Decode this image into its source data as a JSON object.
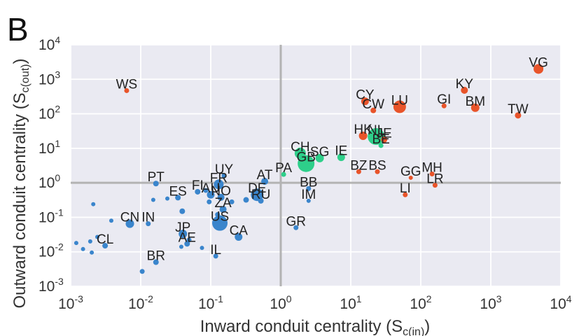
{
  "panel_label": "B",
  "chart_data": {
    "type": "scatter",
    "xlabel": "Inward conduit centrality (S_c(in))",
    "ylabel": "Outward conduit centrality (S_c(out))",
    "xlabel_main": "Inward conduit centrality (S",
    "xlabel_sub": "c(in)",
    "xlabel_end": ")",
    "ylabel_main": "Outward conduit centrality (S",
    "ylabel_sub": "c(out)",
    "ylabel_end": ")",
    "xscale": "log",
    "yscale": "log",
    "xlim": [
      0.001,
      10000
    ],
    "ylim": [
      0.001,
      10000
    ],
    "grid": true,
    "reference_lines": {
      "x": 1,
      "y": 1
    },
    "x_ticks": [
      {
        "base": "10",
        "exp": "-3",
        "value": 0.001
      },
      {
        "base": "10",
        "exp": "-2",
        "value": 0.01
      },
      {
        "base": "10",
        "exp": "-1",
        "value": 0.1
      },
      {
        "base": "10",
        "exp": "0",
        "value": 1
      },
      {
        "base": "10",
        "exp": "1",
        "value": 10
      },
      {
        "base": "10",
        "exp": "2",
        "value": 100
      },
      {
        "base": "10",
        "exp": "3",
        "value": 1000
      },
      {
        "base": "10",
        "exp": "4",
        "value": 10000
      }
    ],
    "y_ticks": [
      {
        "base": "10",
        "exp": "-3",
        "value": 0.001
      },
      {
        "base": "10",
        "exp": "-2",
        "value": 0.01
      },
      {
        "base": "10",
        "exp": "-1",
        "value": 0.1
      },
      {
        "base": "10",
        "exp": "0",
        "value": 1
      },
      {
        "base": "10",
        "exp": "1",
        "value": 10
      },
      {
        "base": "10",
        "exp": "2",
        "value": 100
      },
      {
        "base": "10",
        "exp": "3",
        "value": 1000
      },
      {
        "base": "10",
        "exp": "4",
        "value": 10000
      }
    ],
    "colors": {
      "sink": "#e8542a",
      "conduit": "#2ecf8a",
      "other": "#3a85cc"
    },
    "points": [
      {
        "label": "VG",
        "x": 4800,
        "y": 2000,
        "size": 7,
        "group": "sink"
      },
      {
        "label": "WS",
        "x": 0.0063,
        "y": 470,
        "size": 3.5,
        "group": "sink"
      },
      {
        "label": "KY",
        "x": 420,
        "y": 480,
        "size": 5,
        "group": "sink"
      },
      {
        "label": "CY",
        "x": 16,
        "y": 230,
        "size": 5.5,
        "group": "sink"
      },
      {
        "label": "LU",
        "x": 50,
        "y": 160,
        "size": 9,
        "group": "sink"
      },
      {
        "label": "GI",
        "x": 215,
        "y": 170,
        "size": 3.5,
        "group": "sink"
      },
      {
        "label": "BM",
        "x": 600,
        "y": 150,
        "size": 6,
        "group": "sink"
      },
      {
        "label": "TW",
        "x": 2450,
        "y": 90,
        "size": 4.5,
        "group": "sink"
      },
      {
        "label": "CW",
        "x": 21,
        "y": 125,
        "size": 4,
        "group": "sink"
      },
      {
        "label": "HK",
        "x": 15,
        "y": 23,
        "size": 6,
        "group": "sink"
      },
      {
        "label": "NL",
        "x": 23,
        "y": 22,
        "size": 12,
        "group": "conduit"
      },
      {
        "label": "JE",
        "x": 30,
        "y": 18,
        "size": 4.5,
        "group": "sink"
      },
      {
        "label": "BE",
        "x": 27,
        "y": 12,
        "size": 3.5,
        "group": "conduit"
      },
      {
        "label": "CH",
        "x": 1.9,
        "y": 7.2,
        "size": 8,
        "group": "conduit"
      },
      {
        "label": "SG",
        "x": 3.6,
        "y": 5.2,
        "size": 6,
        "group": "conduit"
      },
      {
        "label": "IE",
        "x": 7.3,
        "y": 5.5,
        "size": 5.5,
        "group": "conduit"
      },
      {
        "label": "GB",
        "x": 2.3,
        "y": 3.6,
        "size": 12,
        "group": "conduit"
      },
      {
        "label": "PA",
        "x": 1.1,
        "y": 1.75,
        "size": 3.5,
        "group": "conduit"
      },
      {
        "label": "BZ",
        "x": 13,
        "y": 2.1,
        "size": 3.5,
        "group": "sink"
      },
      {
        "label": "BS",
        "x": 24,
        "y": 2.1,
        "size": 3.5,
        "group": "sink"
      },
      {
        "label": "GG",
        "x": 72,
        "y": 1.4,
        "size": 3,
        "group": "sink"
      },
      {
        "label": "MH",
        "x": 145,
        "y": 1.8,
        "size": 3.5,
        "group": "sink"
      },
      {
        "label": "LR",
        "x": 160,
        "y": 0.85,
        "size": 3.5,
        "group": "sink"
      },
      {
        "label": "LI",
        "x": 60,
        "y": 0.45,
        "size": 3.5,
        "group": "sink"
      },
      {
        "label": "UY",
        "x": 0.155,
        "y": 1.6,
        "size": 3.5,
        "group": "other"
      },
      {
        "label": "AT",
        "x": 0.59,
        "y": 1.1,
        "size": 5,
        "group": "other"
      },
      {
        "label": "PT",
        "x": 0.0165,
        "y": 0.95,
        "size": 4,
        "group": "other"
      },
      {
        "label": "FR",
        "x": 0.13,
        "y": 0.9,
        "size": 7,
        "group": "other"
      },
      {
        "label": "FI",
        "x": 0.065,
        "y": 0.55,
        "size": 4,
        "group": "other"
      },
      {
        "label": "BB",
        "x": 2.5,
        "y": 0.68,
        "size": 3.5,
        "group": "other"
      },
      {
        "label": "DE",
        "x": 0.46,
        "y": 0.45,
        "size": 9,
        "group": "other"
      },
      {
        "label": "ES",
        "x": 0.034,
        "y": 0.37,
        "size": 4,
        "group": "other"
      },
      {
        "label": "NO",
        "x": 0.14,
        "y": 0.38,
        "size": 5,
        "group": "other"
      },
      {
        "label": "AU",
        "x": 0.1,
        "y": 0.45,
        "size": 5.5,
        "group": "other"
      },
      {
        "label": "IM",
        "x": 2.5,
        "y": 0.3,
        "size": 3,
        "group": "other"
      },
      {
        "label": "RU",
        "x": 0.52,
        "y": 0.3,
        "size": 4,
        "group": "other"
      },
      {
        "label": "ZA",
        "x": 0.15,
        "y": 0.17,
        "size": 5,
        "group": "other"
      },
      {
        "label": "CN",
        "x": 0.007,
        "y": 0.065,
        "size": 6,
        "group": "other"
      },
      {
        "label": "IN",
        "x": 0.0128,
        "y": 0.065,
        "size": 3.5,
        "group": "other"
      },
      {
        "label": "US",
        "x": 0.135,
        "y": 0.068,
        "size": 11,
        "group": "other"
      },
      {
        "label": "GR",
        "x": 1.65,
        "y": 0.05,
        "size": 3.5,
        "group": "other"
      },
      {
        "label": "JP",
        "x": 0.04,
        "y": 0.033,
        "size": 6,
        "group": "other"
      },
      {
        "label": "CA",
        "x": 0.25,
        "y": 0.027,
        "size": 5.5,
        "group": "other"
      },
      {
        "label": "CL",
        "x": 0.0031,
        "y": 0.015,
        "size": 4,
        "group": "other"
      },
      {
        "label": "AE",
        "x": 0.046,
        "y": 0.017,
        "size": 4,
        "group": "other"
      },
      {
        "label": "IL",
        "x": 0.118,
        "y": 0.0075,
        "size": 3.5,
        "group": "other"
      },
      {
        "label": "BR",
        "x": 0.0165,
        "y": 0.005,
        "size": 4,
        "group": "other"
      },
      {
        "label": "",
        "x": 0.0021,
        "y": 0.24,
        "size": 3,
        "group": "other"
      },
      {
        "label": "",
        "x": 0.0038,
        "y": 0.08,
        "size": 3,
        "group": "other"
      },
      {
        "label": "",
        "x": 0.0151,
        "y": 0.32,
        "size": 3,
        "group": "other"
      },
      {
        "label": "",
        "x": 0.0392,
        "y": 0.15,
        "size": 4,
        "group": "other"
      },
      {
        "label": "",
        "x": 0.0012,
        "y": 0.018,
        "size": 3,
        "group": "other"
      },
      {
        "label": "",
        "x": 0.0015,
        "y": 0.012,
        "size": 3,
        "group": "other"
      },
      {
        "label": "",
        "x": 0.0019,
        "y": 0.02,
        "size": 3,
        "group": "other"
      },
      {
        "label": "",
        "x": 0.002,
        "y": 0.0095,
        "size": 3,
        "group": "other"
      },
      {
        "label": "",
        "x": 0.0024,
        "y": 0.027,
        "size": 3,
        "group": "other"
      },
      {
        "label": "",
        "x": 0.0105,
        "y": 0.0027,
        "size": 3.5,
        "group": "other"
      },
      {
        "label": "",
        "x": 0.038,
        "y": 0.014,
        "size": 3,
        "group": "other"
      },
      {
        "label": "",
        "x": 0.075,
        "y": 0.013,
        "size": 3,
        "group": "other"
      },
      {
        "label": "",
        "x": 0.024,
        "y": 0.35,
        "size": 3,
        "group": "other"
      },
      {
        "label": "",
        "x": 0.125,
        "y": 0.12,
        "size": 3.5,
        "group": "other"
      },
      {
        "label": "",
        "x": 0.095,
        "y": 0.28,
        "size": 3.5,
        "group": "other"
      },
      {
        "label": "",
        "x": 0.32,
        "y": 0.32,
        "size": 4,
        "group": "other"
      },
      {
        "label": "",
        "x": 0.2,
        "y": 0.28,
        "size": 3.5,
        "group": "other"
      },
      {
        "label": "",
        "x": 0.085,
        "y": 0.6,
        "size": 3.5,
        "group": "other"
      },
      {
        "label": "",
        "x": 0.049,
        "y": 0.022,
        "size": 3.5,
        "group": "other"
      }
    ]
  }
}
